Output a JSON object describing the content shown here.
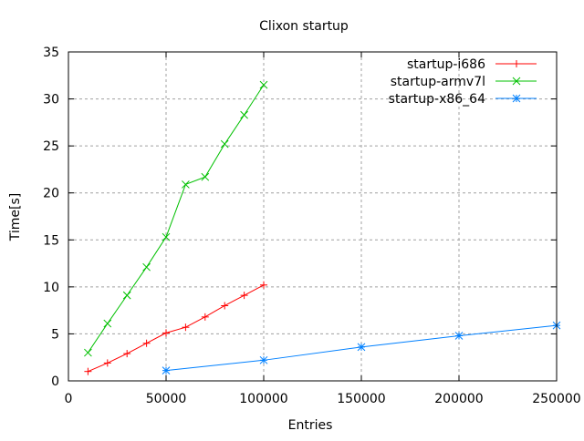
{
  "chart_data": {
    "type": "line",
    "title": "Clixon startup",
    "xlabel": "Entries",
    "ylabel": "Time[s]",
    "xlim": [
      0,
      250000
    ],
    "ylim": [
      0,
      35
    ],
    "xticks": [
      0,
      50000,
      100000,
      150000,
      200000,
      250000
    ],
    "yticks": [
      0,
      5,
      10,
      15,
      20,
      25,
      30,
      35
    ],
    "grid": true,
    "legend": "top-right",
    "series": [
      {
        "name": "startup-i686",
        "color": "#ff0000",
        "marker": "plus",
        "x": [
          10000,
          20000,
          30000,
          40000,
          50000,
          60000,
          70000,
          80000,
          90000,
          100000
        ],
        "y": [
          1.0,
          1.9,
          2.9,
          4.0,
          5.1,
          5.7,
          6.8,
          8.0,
          9.1,
          10.2
        ]
      },
      {
        "name": "startup-armv7l",
        "color": "#00c000",
        "marker": "cross",
        "x": [
          10000,
          20000,
          30000,
          40000,
          50000,
          60000,
          70000,
          80000,
          90000,
          100000
        ],
        "y": [
          3.0,
          6.1,
          9.1,
          12.1,
          15.3,
          20.9,
          21.7,
          25.2,
          28.3,
          31.5
        ]
      },
      {
        "name": "startup-x86_64",
        "color": "#0080ff",
        "marker": "star",
        "x": [
          50000,
          100000,
          150000,
          200000,
          250000
        ],
        "y": [
          1.1,
          2.2,
          3.6,
          4.8,
          5.9
        ]
      }
    ]
  }
}
